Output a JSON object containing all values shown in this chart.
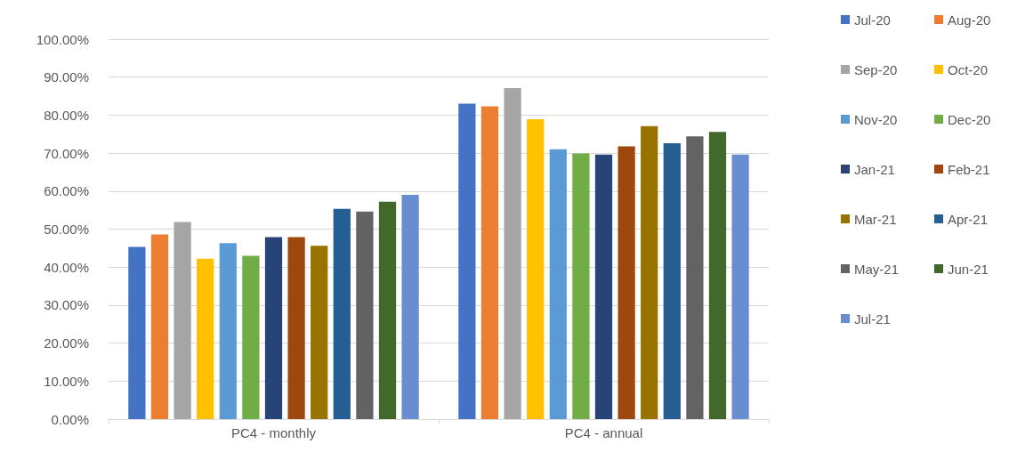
{
  "chart_data": {
    "type": "bar",
    "categories": [
      "PC4 - monthly",
      "PC4 - annual"
    ],
    "series": [
      {
        "name": "Jul-20",
        "color": "#4472c4",
        "values": [
          45.3,
          83.0
        ]
      },
      {
        "name": "Aug-20",
        "color": "#ed7d31",
        "values": [
          48.6,
          82.3
        ]
      },
      {
        "name": "Sep-20",
        "color": "#a5a5a5",
        "values": [
          51.9,
          87.1
        ]
      },
      {
        "name": "Oct-20",
        "color": "#ffc000",
        "values": [
          42.2,
          78.9
        ]
      },
      {
        "name": "Nov-20",
        "color": "#5b9bd5",
        "values": [
          46.3,
          71.0
        ]
      },
      {
        "name": "Dec-20",
        "color": "#70ad47",
        "values": [
          43.0,
          69.9
        ]
      },
      {
        "name": "Jan-21",
        "color": "#264478",
        "values": [
          47.9,
          69.6
        ]
      },
      {
        "name": "Feb-21",
        "color": "#9e480e",
        "values": [
          47.9,
          71.8
        ]
      },
      {
        "name": "Mar-21",
        "color": "#997300",
        "values": [
          45.6,
          77.1
        ]
      },
      {
        "name": "Apr-21",
        "color": "#255e91",
        "values": [
          55.3,
          72.6
        ]
      },
      {
        "name": "May-21",
        "color": "#636363",
        "values": [
          54.6,
          74.4
        ]
      },
      {
        "name": "Jun-21",
        "color": "#43682b",
        "values": [
          57.2,
          75.6
        ]
      },
      {
        "name": "Jul-21",
        "color": "#698ed0",
        "values": [
          59.0,
          69.6
        ]
      }
    ],
    "ylim": [
      0,
      100
    ],
    "yticks": [
      {
        "value": 0,
        "label": "0.00%"
      },
      {
        "value": 10,
        "label": "10.00%"
      },
      {
        "value": 20,
        "label": "20.00%"
      },
      {
        "value": 30,
        "label": "30.00%"
      },
      {
        "value": 40,
        "label": "40.00%"
      },
      {
        "value": 50,
        "label": "50.00%"
      },
      {
        "value": 60,
        "label": "60.00%"
      },
      {
        "value": 70,
        "label": "70.00%"
      },
      {
        "value": 80,
        "label": "80.00%"
      },
      {
        "value": 90,
        "label": "90.00%"
      },
      {
        "value": 100,
        "label": "100.00%"
      }
    ],
    "grid": true,
    "legend": "right"
  }
}
